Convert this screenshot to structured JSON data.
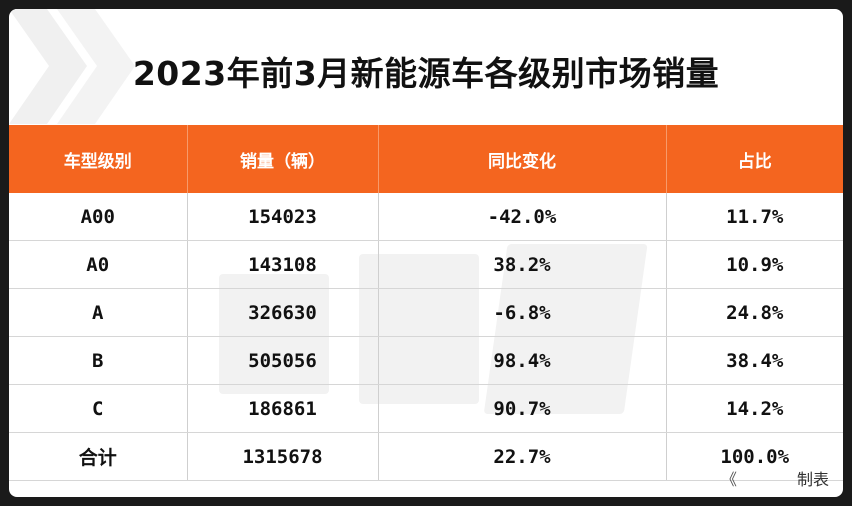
{
  "title": "2023年前3月新能源车各级别市场销量",
  "table": {
    "headers": [
      "车型级别",
      "销量（辆）",
      "同比变化",
      "占比"
    ],
    "rows": [
      {
        "level": "A00",
        "sales": "154023",
        "yoy": "-42.0%",
        "share": "11.7%"
      },
      {
        "level": "A0",
        "sales": "143108",
        "yoy": "38.2%",
        "share": "10.9%"
      },
      {
        "level": "A",
        "sales": "326630",
        "yoy": "-6.8%",
        "share": "24.8%"
      },
      {
        "level": "B",
        "sales": "505056",
        "yoy": "98.4%",
        "share": "38.4%"
      },
      {
        "level": "C",
        "sales": "186861",
        "yoy": "90.7%",
        "share": "14.2%"
      },
      {
        "level": "合计",
        "sales": "1315678",
        "yoy": "22.7%",
        "share": "100.0%"
      }
    ]
  },
  "footer": {
    "mark": "《",
    "label": "制表"
  },
  "colors": {
    "header_bg": "#f4651f",
    "header_text": "#ffffff"
  }
}
